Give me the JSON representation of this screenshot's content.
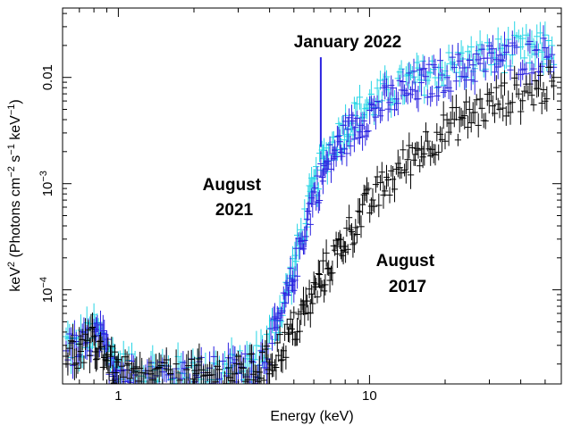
{
  "chart_data": {
    "type": "scatter",
    "title": "",
    "xlabel": "Energy (keV)",
    "ylabel_parts": [
      "keV",
      "2",
      " (Photons cm",
      "−2",
      " s",
      "−1",
      " keV",
      "−1",
      ")"
    ],
    "xscale": "log",
    "yscale": "log",
    "xlim": [
      0.6,
      58
    ],
    "ylim": [
      1.3e-05,
      0.045
    ],
    "x_ticks": [
      {
        "value": 1,
        "label": "1"
      },
      {
        "value": 10,
        "label": "10"
      }
    ],
    "y_ticks": [
      {
        "value": 0.01,
        "base": "0.01",
        "exp": ""
      },
      {
        "value": 0.001,
        "base": "10",
        "exp": "−3"
      },
      {
        "value": 0.0001,
        "base": "10",
        "exp": "−4"
      }
    ],
    "annotations": [
      {
        "lines": [
          "January 2022"
        ],
        "color": "#20d0e0"
      },
      {
        "lines": [
          "August",
          "2021"
        ],
        "color": "#2a1fd8"
      },
      {
        "lines": [
          "August",
          "2017"
        ],
        "color": "#000000"
      }
    ],
    "series": [
      {
        "name": "January 2022",
        "color": "#25d5e5",
        "points": [
          [
            0.62,
            3.2e-05
          ],
          [
            0.68,
            2.8e-05
          ],
          [
            0.74,
            3.4e-05
          ],
          [
            0.8,
            4e-05
          ],
          [
            0.85,
            3.6e-05
          ],
          [
            0.9,
            2.8e-05
          ],
          [
            0.95,
            2.2e-05
          ],
          [
            1.0,
            1.9e-05
          ],
          [
            1.1,
            1.7e-05
          ],
          [
            1.2,
            1.6e-05
          ],
          [
            1.35,
            1.6e-05
          ],
          [
            1.5,
            1.7e-05
          ],
          [
            1.7,
            1.6e-05
          ],
          [
            1.9,
            1.7e-05
          ],
          [
            2.1,
            1.6e-05
          ],
          [
            2.4,
            1.7e-05
          ],
          [
            2.7,
            1.7e-05
          ],
          [
            3.0,
            1.8e-05
          ],
          [
            3.3,
            1.9e-05
          ],
          [
            3.6,
            2.2e-05
          ],
          [
            3.9,
            3e-05
          ],
          [
            4.2,
            4.5e-05
          ],
          [
            4.5,
            7e-05
          ],
          [
            4.8,
            0.00012
          ],
          [
            5.1,
            0.0002
          ],
          [
            5.4,
            0.00035
          ],
          [
            5.7,
            0.0006
          ],
          [
            6.0,
            0.0009
          ],
          [
            6.4,
            0.0014
          ],
          [
            6.8,
            0.0019
          ],
          [
            7.2,
            0.0024
          ],
          [
            7.7,
            0.003
          ],
          [
            8.2,
            0.0036
          ],
          [
            8.8,
            0.0043
          ],
          [
            9.5,
            0.005
          ],
          [
            10.3,
            0.0058
          ],
          [
            11.2,
            0.0066
          ],
          [
            12.2,
            0.0074
          ],
          [
            13.4,
            0.0083
          ],
          [
            14.8,
            0.0092
          ],
          [
            16.3,
            0.01
          ],
          [
            18.0,
            0.011
          ],
          [
            20.0,
            0.012
          ],
          [
            22.5,
            0.013
          ],
          [
            25.0,
            0.014
          ],
          [
            28.0,
            0.015
          ],
          [
            31.5,
            0.016
          ],
          [
            35.0,
            0.0165
          ],
          [
            40.0,
            0.017
          ],
          [
            45.0,
            0.0175
          ],
          [
            50.0,
            0.018
          ],
          [
            55.0,
            0.0185
          ]
        ]
      },
      {
        "name": "August 2021",
        "color": "#2b22e0",
        "points": [
          [
            0.62,
            2.8e-05
          ],
          [
            0.68,
            2.6e-05
          ],
          [
            0.74,
            3e-05
          ],
          [
            0.8,
            3.6e-05
          ],
          [
            0.85,
            3.2e-05
          ],
          [
            0.9,
            2.6e-05
          ],
          [
            0.95,
            2.1e-05
          ],
          [
            1.0,
            1.8e-05
          ],
          [
            1.1,
            1.6e-05
          ],
          [
            1.2,
            1.5e-05
          ],
          [
            1.35,
            1.5e-05
          ],
          [
            1.5,
            1.6e-05
          ],
          [
            1.7,
            1.5e-05
          ],
          [
            1.9,
            1.6e-05
          ],
          [
            2.1,
            1.6e-05
          ],
          [
            2.4,
            1.6e-05
          ],
          [
            2.7,
            1.6e-05
          ],
          [
            3.0,
            1.7e-05
          ],
          [
            3.3,
            1.8e-05
          ],
          [
            3.6,
            2e-05
          ],
          [
            3.9,
            2.6e-05
          ],
          [
            4.2,
            3.8e-05
          ],
          [
            4.5,
            6e-05
          ],
          [
            4.8,
            0.0001
          ],
          [
            5.1,
            0.00017
          ],
          [
            5.4,
            0.0003
          ],
          [
            5.7,
            0.0005
          ],
          [
            6.0,
            0.00075
          ],
          [
            6.4,
            0.0011
          ],
          [
            6.8,
            0.0015
          ],
          [
            7.2,
            0.0019
          ],
          [
            7.7,
            0.0024
          ],
          [
            8.2,
            0.0029
          ],
          [
            8.8,
            0.0035
          ],
          [
            9.5,
            0.0041
          ],
          [
            10.3,
            0.0048
          ],
          [
            11.2,
            0.0055
          ],
          [
            12.2,
            0.0062
          ],
          [
            13.4,
            0.007
          ],
          [
            14.8,
            0.0078
          ],
          [
            16.3,
            0.0086
          ],
          [
            18.0,
            0.0095
          ],
          [
            20.0,
            0.0105
          ],
          [
            22.5,
            0.0115
          ],
          [
            25.0,
            0.0125
          ],
          [
            28.0,
            0.0135
          ],
          [
            31.5,
            0.0145
          ],
          [
            35.0,
            0.015
          ],
          [
            40.0,
            0.0155
          ],
          [
            45.0,
            0.016
          ],
          [
            50.0,
            0.0165
          ],
          [
            55.0,
            0.017
          ]
        ]
      },
      {
        "name": "August 2017",
        "color": "#000000",
        "points": [
          [
            0.62,
            2.6e-05
          ],
          [
            0.68,
            2.4e-05
          ],
          [
            0.74,
            2.7e-05
          ],
          [
            0.8,
            3.1e-05
          ],
          [
            0.85,
            2.8e-05
          ],
          [
            0.9,
            2.3e-05
          ],
          [
            0.95,
            1.9e-05
          ],
          [
            1.0,
            1.7e-05
          ],
          [
            1.1,
            1.5e-05
          ],
          [
            1.2,
            1.4e-05
          ],
          [
            1.35,
            1.4e-05
          ],
          [
            1.5,
            1.5e-05
          ],
          [
            1.7,
            1.4e-05
          ],
          [
            1.9,
            1.5e-05
          ],
          [
            2.1,
            1.5e-05
          ],
          [
            2.4,
            1.5e-05
          ],
          [
            2.7,
            1.5e-05
          ],
          [
            3.0,
            1.6e-05
          ],
          [
            3.3,
            1.7e-05
          ],
          [
            3.6,
            1.8e-05
          ],
          [
            3.9,
            2e-05
          ],
          [
            4.2,
            2.4e-05
          ],
          [
            4.5,
            3e-05
          ],
          [
            4.8,
            3.7e-05
          ],
          [
            5.1,
            4.6e-05
          ],
          [
            5.4,
            5.8e-05
          ],
          [
            5.7,
            7.2e-05
          ],
          [
            6.0,
            9e-05
          ],
          [
            6.4,
            0.00012
          ],
          [
            6.8,
            0.00016
          ],
          [
            7.2,
            0.0002
          ],
          [
            7.7,
            0.00026
          ],
          [
            8.2,
            0.00033
          ],
          [
            8.8,
            0.00042
          ],
          [
            9.5,
            0.00055
          ],
          [
            10.3,
            0.0007
          ],
          [
            11.2,
            0.0009
          ],
          [
            12.2,
            0.0011
          ],
          [
            13.4,
            0.0014
          ],
          [
            14.8,
            0.0018
          ],
          [
            16.3,
            0.0022
          ],
          [
            18.0,
            0.0027
          ],
          [
            20.0,
            0.0032
          ],
          [
            22.5,
            0.0038
          ],
          [
            25.0,
            0.0044
          ],
          [
            28.0,
            0.005
          ],
          [
            31.5,
            0.0057
          ],
          [
            35.0,
            0.0064
          ],
          [
            40.0,
            0.007
          ],
          [
            45.0,
            0.0076
          ],
          [
            50.0,
            0.0082
          ],
          [
            55.0,
            0.0088
          ]
        ]
      }
    ],
    "line_feature": {
      "x": 6.4,
      "y": 0.0155,
      "series": "August 2021"
    }
  }
}
